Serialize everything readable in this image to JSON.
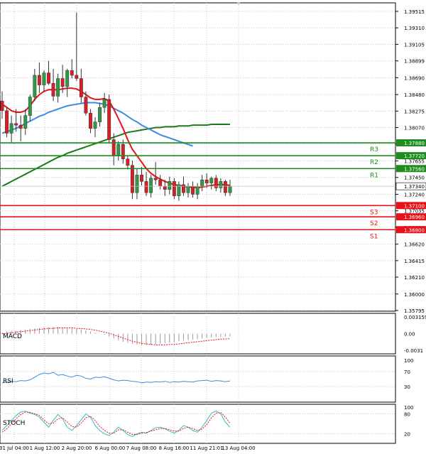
{
  "chart_data": {
    "type": "candlestick",
    "x_tick_labels": [
      "31 Jul 04:00",
      "1 Aug 12:00",
      "2 Aug 20:00",
      "6 Aug 00:00",
      "7 Aug 08:00",
      "8 Aug 16:00",
      "11 Aug 21:01",
      "13 Aug 04:00"
    ],
    "price": {
      "ylim": [
        1.35795,
        1.39515
      ],
      "ticks": [
        "1.39515",
        "1.39310",
        "1.39105",
        "1.38899",
        "1.38690",
        "1.38480",
        "1.38275",
        "1.38070",
        "1.37865",
        "1.37655",
        "1.37450",
        "1.37240",
        "1.37035",
        "1.36830",
        "1.36620",
        "1.36415",
        "1.36210",
        "1.36000",
        "1.35795"
      ],
      "current": "1.37340",
      "candles": [
        {
          "o": 1.384,
          "h": 1.3852,
          "l": 1.3818,
          "c": 1.3828
        },
        {
          "o": 1.3828,
          "h": 1.3832,
          "l": 1.3795,
          "c": 1.38
        },
        {
          "o": 1.38,
          "h": 1.3822,
          "l": 1.3788,
          "c": 1.3812
        },
        {
          "o": 1.3812,
          "h": 1.383,
          "l": 1.3802,
          "c": 1.381
        },
        {
          "o": 1.381,
          "h": 1.3822,
          "l": 1.379,
          "c": 1.3806
        },
        {
          "o": 1.3806,
          "h": 1.383,
          "l": 1.3798,
          "c": 1.3822
        },
        {
          "o": 1.3822,
          "h": 1.3848,
          "l": 1.3815,
          "c": 1.3845
        },
        {
          "o": 1.3845,
          "h": 1.388,
          "l": 1.384,
          "c": 1.3872
        },
        {
          "o": 1.3872,
          "h": 1.3888,
          "l": 1.385,
          "c": 1.386
        },
        {
          "o": 1.386,
          "h": 1.3878,
          "l": 1.3852,
          "c": 1.3875
        },
        {
          "o": 1.3875,
          "h": 1.389,
          "l": 1.386,
          "c": 1.3862
        },
        {
          "o": 1.3862,
          "h": 1.388,
          "l": 1.384,
          "c": 1.3846
        },
        {
          "o": 1.3846,
          "h": 1.3874,
          "l": 1.3838,
          "c": 1.3868
        },
        {
          "o": 1.3868,
          "h": 1.3885,
          "l": 1.385,
          "c": 1.3858
        },
        {
          "o": 1.3858,
          "h": 1.388,
          "l": 1.3845,
          "c": 1.3878
        },
        {
          "o": 1.3878,
          "h": 1.3892,
          "l": 1.3868,
          "c": 1.3872
        },
        {
          "o": 1.3872,
          "h": 1.395,
          "l": 1.3865,
          "c": 1.3868
        },
        {
          "o": 1.3868,
          "h": 1.388,
          "l": 1.3838,
          "c": 1.3845
        },
        {
          "o": 1.3845,
          "h": 1.3852,
          "l": 1.3822,
          "c": 1.3825
        },
        {
          "o": 1.3825,
          "h": 1.383,
          "l": 1.38,
          "c": 1.3806
        },
        {
          "o": 1.3806,
          "h": 1.382,
          "l": 1.3795,
          "c": 1.3814
        },
        {
          "o": 1.3814,
          "h": 1.3838,
          "l": 1.3808,
          "c": 1.3832
        },
        {
          "o": 1.3832,
          "h": 1.385,
          "l": 1.3825,
          "c": 1.3842
        },
        {
          "o": 1.3842,
          "h": 1.3848,
          "l": 1.3788,
          "c": 1.3792
        },
        {
          "o": 1.3792,
          "h": 1.38,
          "l": 1.376,
          "c": 1.3772
        },
        {
          "o": 1.3772,
          "h": 1.379,
          "l": 1.3766,
          "c": 1.3786
        },
        {
          "o": 1.3786,
          "h": 1.3792,
          "l": 1.3762,
          "c": 1.3768
        },
        {
          "o": 1.3768,
          "h": 1.3772,
          "l": 1.3755,
          "c": 1.376
        },
        {
          "o": 1.376,
          "h": 1.3766,
          "l": 1.3718,
          "c": 1.3726
        },
        {
          "o": 1.3726,
          "h": 1.3756,
          "l": 1.3718,
          "c": 1.3748
        },
        {
          "o": 1.3748,
          "h": 1.3758,
          "l": 1.3735,
          "c": 1.374
        },
        {
          "o": 1.374,
          "h": 1.3752,
          "l": 1.3722,
          "c": 1.3726
        },
        {
          "o": 1.3726,
          "h": 1.3748,
          "l": 1.372,
          "c": 1.3744
        },
        {
          "o": 1.3744,
          "h": 1.3764,
          "l": 1.3736,
          "c": 1.3742
        },
        {
          "o": 1.3742,
          "h": 1.3748,
          "l": 1.373,
          "c": 1.3734
        },
        {
          "o": 1.3734,
          "h": 1.3742,
          "l": 1.3722,
          "c": 1.373
        },
        {
          "o": 1.373,
          "h": 1.3746,
          "l": 1.3724,
          "c": 1.374
        },
        {
          "o": 1.374,
          "h": 1.3744,
          "l": 1.3718,
          "c": 1.3722
        },
        {
          "o": 1.3722,
          "h": 1.374,
          "l": 1.3716,
          "c": 1.3736
        },
        {
          "o": 1.3736,
          "h": 1.3746,
          "l": 1.3722,
          "c": 1.3726
        },
        {
          "o": 1.3726,
          "h": 1.3738,
          "l": 1.372,
          "c": 1.3734
        },
        {
          "o": 1.3734,
          "h": 1.374,
          "l": 1.372,
          "c": 1.3724
        },
        {
          "o": 1.3724,
          "h": 1.3738,
          "l": 1.3718,
          "c": 1.3734
        },
        {
          "o": 1.3734,
          "h": 1.3748,
          "l": 1.3728,
          "c": 1.3742
        },
        {
          "o": 1.3742,
          "h": 1.375,
          "l": 1.3732,
          "c": 1.3738
        },
        {
          "o": 1.3738,
          "h": 1.3746,
          "l": 1.373,
          "c": 1.3744
        },
        {
          "o": 1.3744,
          "h": 1.3748,
          "l": 1.3728,
          "c": 1.3732
        },
        {
          "o": 1.3732,
          "h": 1.3744,
          "l": 1.3726,
          "c": 1.374
        },
        {
          "o": 1.374,
          "h": 1.3742,
          "l": 1.3722,
          "c": 1.3726
        },
        {
          "o": 1.3726,
          "h": 1.3742,
          "l": 1.3722,
          "c": 1.3734
        }
      ],
      "ma_fast": [
        1.3836,
        1.3832,
        1.3828,
        1.3826,
        1.3826,
        1.3828,
        1.3834,
        1.3842,
        1.3848,
        1.3852,
        1.3854,
        1.3854,
        1.3854,
        1.3855,
        1.3856,
        1.3856,
        1.3855,
        1.3852,
        1.3848,
        1.3844,
        1.3842,
        1.3842,
        1.3843,
        1.384,
        1.383,
        1.3818,
        1.3806,
        1.3792,
        1.378,
        1.3772,
        1.3764,
        1.3756,
        1.375,
        1.3746,
        1.3743,
        1.374,
        1.3738,
        1.3736,
        1.3735,
        1.3734,
        1.3733,
        1.3733,
        1.3732,
        1.3733,
        1.3734,
        1.3735,
        1.3736,
        1.3736,
        1.3736,
        1.3735
      ],
      "ma_mid": [
        1.38,
        1.3802,
        1.3804,
        1.3806,
        1.3809,
        1.3812,
        1.3815,
        1.3818,
        1.3821,
        1.3823,
        1.3826,
        1.3828,
        1.383,
        1.3832,
        1.3834,
        1.3835,
        1.3836,
        1.3837,
        1.3838,
        1.3838,
        1.3838,
        1.3837,
        1.3836,
        1.3834,
        1.3831,
        1.3828,
        1.3825,
        1.3821,
        1.3817,
        1.3814,
        1.381,
        1.3807,
        1.3804,
        1.3801,
        1.3798,
        1.3796,
        1.3794,
        1.3792,
        1.379,
        1.3788,
        1.3786,
        1.3784
      ],
      "ma_slow": [
        1.3734,
        1.3737,
        1.374,
        1.3743,
        1.3746,
        1.3749,
        1.3752,
        1.3755,
        1.3758,
        1.3761,
        1.3764,
        1.3767,
        1.377,
        1.3772,
        1.3775,
        1.3777,
        1.3779,
        1.3781,
        1.3783,
        1.3785,
        1.3787,
        1.3789,
        1.3791,
        1.3793,
        1.3795,
        1.3797,
        1.3799,
        1.3801,
        1.3802,
        1.3803,
        1.3804,
        1.3805,
        1.3806,
        1.3807,
        1.3807,
        1.3808,
        1.3808,
        1.3808,
        1.3809,
        1.3809,
        1.3809,
        1.381,
        1.381,
        1.381,
        1.381,
        1.3811,
        1.3811,
        1.3811,
        1.3811,
        1.3811
      ],
      "levels": [
        {
          "name": "R3",
          "value": "1.37880",
          "y": 1.3788,
          "color": "#1e8c1e"
        },
        {
          "name": "R2",
          "value": "1.37720",
          "y": 1.3772,
          "color": "#1e8c1e"
        },
        {
          "name": "R1",
          "value": "1.37560",
          "y": 1.3756,
          "color": "#1e8c1e"
        },
        {
          "name": "S3",
          "value": "1.37100",
          "y": 1.371,
          "color": "#e8131a"
        },
        {
          "name": "S2",
          "value": "1.36960",
          "y": 1.3696,
          "color": "#e8131a"
        },
        {
          "name": "S1",
          "value": "1.36800",
          "y": 1.368,
          "color": "#e8131a"
        }
      ]
    },
    "macd": {
      "label": "MACD",
      "ylim": [
        -0.0031,
        0.003159
      ],
      "ticks": [
        "0.003159",
        "0.00",
        "-0.0031"
      ],
      "histogram": [
        0.0002,
        0.0004,
        0.0005,
        0.0006,
        0.0007,
        0.0008,
        0.0009,
        0.001,
        0.0011,
        0.0012,
        0.0012,
        0.0013,
        0.0013,
        0.0012,
        0.0011,
        0.001,
        0.0009,
        0.0008,
        0.0006,
        0.0004,
        0.0002,
        0.0,
        -0.0002,
        -0.0005,
        -0.0009,
        -0.0012,
        -0.0015,
        -0.0017,
        -0.0019,
        -0.002,
        -0.0021,
        -0.0021,
        -0.0021,
        -0.002,
        -0.0019,
        -0.0018,
        -0.0017,
        -0.0016,
        -0.0014,
        -0.0013,
        -0.0012,
        -0.0011,
        -0.001,
        -0.0009,
        -0.0008,
        -0.0007,
        -0.0006,
        -0.0006,
        -0.0005,
        -0.0005
      ],
      "signal": [
        0.0,
        0.0001,
        0.0002,
        0.0003,
        0.0004,
        0.0005,
        0.0006,
        0.0007,
        0.0008,
        0.0009,
        0.001,
        0.001,
        0.0011,
        0.0011,
        0.0011,
        0.0011,
        0.001,
        0.001,
        0.0009,
        0.0008,
        0.0007,
        0.0005,
        0.0003,
        0.0001,
        -0.0002,
        -0.0005,
        -0.0008,
        -0.0011,
        -0.0014,
        -0.0016,
        -0.0018,
        -0.0019,
        -0.002,
        -0.0021,
        -0.0021,
        -0.0021,
        -0.002,
        -0.002,
        -0.0019,
        -0.0018,
        -0.0017,
        -0.0016,
        -0.0015,
        -0.0014,
        -0.0013,
        -0.0012,
        -0.0011,
        -0.001,
        -0.001,
        -0.0009
      ]
    },
    "rsi": {
      "label": "RSI",
      "ylim": [
        0,
        100
      ],
      "ticks": [
        "100",
        "70",
        "30"
      ],
      "values": [
        40,
        42,
        44,
        43,
        46,
        45,
        48,
        55,
        62,
        66,
        64,
        68,
        60,
        62,
        58,
        55,
        60,
        58,
        52,
        50,
        55,
        54,
        56,
        52,
        48,
        45,
        47,
        46,
        44,
        43,
        40,
        42,
        41,
        43,
        42,
        44,
        41,
        43,
        42,
        44,
        43,
        42,
        45,
        46,
        47,
        44,
        46,
        45,
        43,
        45
      ]
    },
    "stoch": {
      "label": "STOCH",
      "ylim": [
        0,
        100
      ],
      "ticks": [
        "100",
        "80",
        "20"
      ],
      "k": [
        30,
        45,
        60,
        75,
        85,
        88,
        82,
        78,
        70,
        55,
        40,
        60,
        78,
        65,
        40,
        30,
        45,
        62,
        80,
        70,
        45,
        30,
        20,
        15,
        25,
        40,
        30,
        18,
        12,
        20,
        25,
        22,
        30,
        38,
        40,
        35,
        28,
        22,
        30,
        45,
        40,
        30,
        25,
        40,
        60,
        82,
        88,
        80,
        55,
        40
      ],
      "d": [
        25,
        35,
        50,
        65,
        78,
        85,
        84,
        80,
        75,
        62,
        50,
        52,
        65,
        68,
        55,
        42,
        40,
        52,
        68,
        72,
        60,
        42,
        30,
        22,
        22,
        32,
        32,
        25,
        18,
        18,
        22,
        24,
        28,
        32,
        36,
        36,
        32,
        28,
        28,
        36,
        40,
        36,
        30,
        34,
        48,
        68,
        82,
        84,
        70,
        52
      ]
    }
  }
}
